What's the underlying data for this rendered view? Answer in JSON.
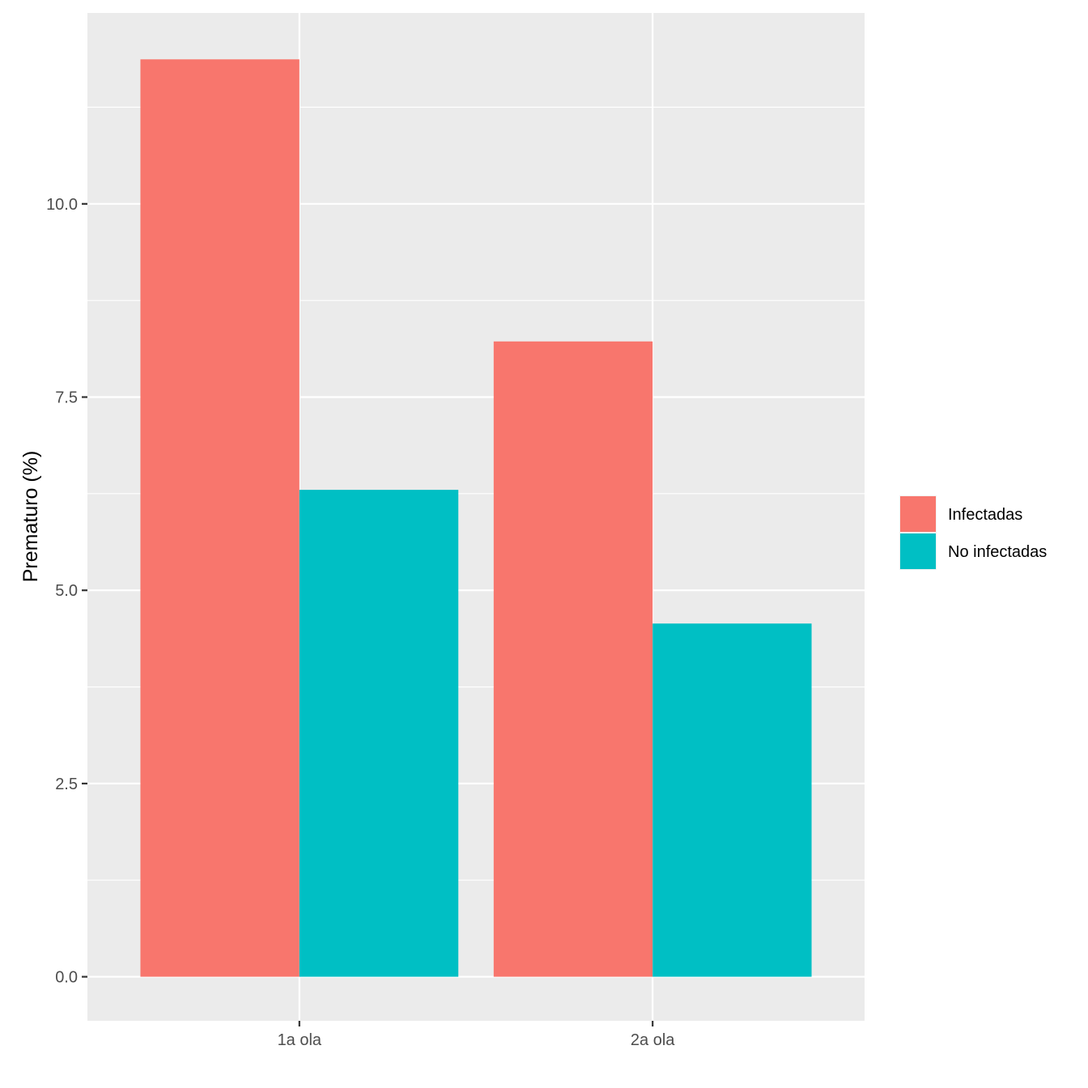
{
  "chart_data": {
    "type": "bar",
    "title": "",
    "xlabel": "",
    "ylabel": "Prematuro (%)",
    "categories": [
      "1a ola",
      "2a ola"
    ],
    "series": [
      {
        "name": "Infectadas",
        "color": "#F8766D",
        "values": [
          11.87,
          8.22
        ]
      },
      {
        "name": "No infectadas",
        "color": "#00BFC4",
        "values": [
          6.3,
          4.57
        ]
      }
    ],
    "ylim": [
      -0.57,
      12.47
    ],
    "yticks": [
      0.0,
      2.5,
      5.0,
      7.5,
      10.0
    ],
    "ytick_labels": [
      "0.0",
      "2.5",
      "5.0",
      "7.5",
      "10.0"
    ],
    "grid": true,
    "legend_position": "right",
    "panel_color": "#EBEBEB",
    "gridline_color": "#FFFFFF"
  }
}
